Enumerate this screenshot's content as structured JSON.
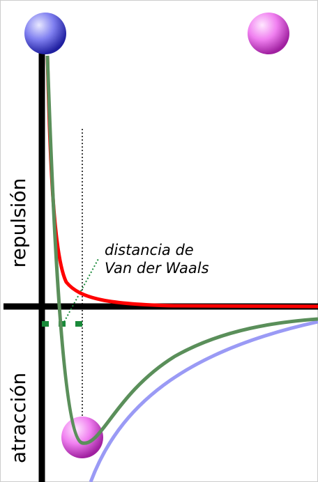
{
  "labels": {
    "repulsion": "repulsión",
    "attraction": "atracción",
    "distance_line1": "distancia de",
    "distance_line2": "Van der Waals"
  }
}
